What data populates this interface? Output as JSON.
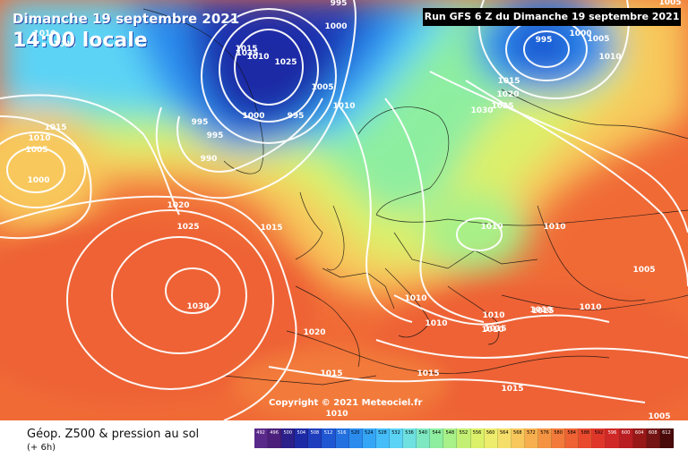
{
  "header": {
    "date_line": "Dimanche 19 septembre 2021",
    "time_line": "14:00 locale",
    "run_info": "Run GFS 6 Z du Dimanche 19 septembre 2021"
  },
  "copyright": "Copyright © 2021 Meteociel.fr",
  "legend": {
    "title": "Géop. Z500 & pression au sol",
    "subtitle": "(+ 6h)",
    "ticks": [
      "492",
      "496",
      "500",
      "504",
      "508",
      "512",
      "516",
      "520",
      "524",
      "528",
      "532",
      "536",
      "540",
      "544",
      "548",
      "552",
      "556",
      "560",
      "564",
      "568",
      "572",
      "576",
      "580",
      "584",
      "588",
      "592",
      "596",
      "600",
      "604",
      "608",
      "612"
    ],
    "colors": [
      "#5a2a8a",
      "#4b1f7a",
      "#2b1f8a",
      "#1d2aa6",
      "#1f3ebd",
      "#1f56d1",
      "#2370e0",
      "#2b8cee",
      "#35a6f5",
      "#45bdf8",
      "#5bd3f5",
      "#6fe0e0",
      "#7ee8c0",
      "#8eeea0",
      "#a8f088",
      "#c3f074",
      "#dcf06a",
      "#eeec6c",
      "#f6de6a",
      "#f8c85c",
      "#f6ae4e",
      "#f49442",
      "#f27a3a",
      "#ee6234",
      "#e94a2e",
      "#e0362a",
      "#cf2826",
      "#b81e22",
      "#981818",
      "#741414",
      "#4a0a0a"
    ]
  },
  "pressure_labels": [
    {
      "text": "995",
      "lx": 0.493,
      "ly": 0.006
    },
    {
      "text": "1000",
      "lx": 0.487,
      "ly": 0.061
    },
    {
      "text": "1010",
      "lx": 0.065,
      "ly": 0.085
    },
    {
      "text": "1020",
      "lx": 0.094,
      "ly": 0.108
    },
    {
      "text": "1015",
      "lx": 0.358,
      "ly": 0.117
    },
    {
      "text": "1010",
      "lx": 0.374,
      "ly": 0.136
    },
    {
      "text": "1025",
      "lx": 0.415,
      "ly": 0.149
    },
    {
      "text": "1005",
      "lx": 0.469,
      "ly": 0.211
    },
    {
      "text": "1000",
      "lx": 0.368,
      "ly": 0.277
    },
    {
      "text": "995",
      "lx": 0.43,
      "ly": 0.277
    },
    {
      "text": "995",
      "lx": 0.29,
      "ly": 0.291
    },
    {
      "text": "995",
      "lx": 0.313,
      "ly": 0.321
    },
    {
      "text": "990",
      "lx": 0.304,
      "ly": 0.377
    },
    {
      "text": "1010",
      "lx": 0.5,
      "ly": 0.253
    },
    {
      "text": "1015",
      "lx": 0.081,
      "ly": 0.302
    },
    {
      "text": "1010",
      "lx": 0.057,
      "ly": 0.328
    },
    {
      "text": "1005",
      "lx": 0.054,
      "ly": 0.355
    },
    {
      "text": "1000",
      "lx": 0.056,
      "ly": 0.428
    },
    {
      "text": "1020",
      "lx": 0.259,
      "ly": 0.49
    },
    {
      "text": "1025",
      "lx": 0.273,
      "ly": 0.54
    },
    {
      "text": "1015",
      "lx": 0.395,
      "ly": 0.543
    },
    {
      "text": "1030",
      "lx": 0.288,
      "ly": 0.73
    },
    {
      "text": "1020",
      "lx": 0.457,
      "ly": 0.792
    },
    {
      "text": "1015",
      "lx": 0.482,
      "ly": 0.889
    },
    {
      "text": "1010",
      "lx": 0.49,
      "ly": 0.985
    },
    {
      "text": "995",
      "lx": 0.79,
      "ly": 0.098
    },
    {
      "text": "1000",
      "lx": 0.844,
      "ly": 0.083
    },
    {
      "text": "1005",
      "lx": 0.87,
      "ly": 0.094
    },
    {
      "text": "1010",
      "lx": 0.887,
      "ly": 0.136
    },
    {
      "text": "1005",
      "lx": 0.974,
      "ly": 0.009
    },
    {
      "text": "1015",
      "lx": 0.74,
      "ly": 0.196
    },
    {
      "text": "1020",
      "lx": 0.738,
      "ly": 0.226
    },
    {
      "text": "1025",
      "lx": 0.73,
      "ly": 0.253
    },
    {
      "text": "1030",
      "lx": 0.7,
      "ly": 0.264
    },
    {
      "text": "1010",
      "lx": 0.715,
      "ly": 0.581
    },
    {
      "text": "1010",
      "lx": 0.806,
      "ly": 0.543
    },
    {
      "text": "1005",
      "lx": 0.936,
      "ly": 0.645
    },
    {
      "text": "1010",
      "lx": 0.604,
      "ly": 0.711
    },
    {
      "text": "1010",
      "lx": 0.634,
      "ly": 0.77
    },
    {
      "text": "1010",
      "lx": 0.717,
      "ly": 0.753
    },
    {
      "text": "1015",
      "lx": 0.72,
      "ly": 0.783
    },
    {
      "text": "1010",
      "lx": 0.716,
      "ly": 0.785
    },
    {
      "text": "1015",
      "lx": 0.789,
      "ly": 0.741
    },
    {
      "text": "1010",
      "lx": 0.787,
      "ly": 0.74
    },
    {
      "text": "1010",
      "lx": 0.858,
      "ly": 0.734
    },
    {
      "text": "1015",
      "lx": 0.623,
      "ly": 0.891
    },
    {
      "text": "1015",
      "lx": 0.745,
      "ly": 0.928
    },
    {
      "text": "1005",
      "lx": 0.958,
      "ly": 0.994
    },
    {
      "text": "1035",
      "lx": 0.36,
      "ly": 0.13
    }
  ]
}
